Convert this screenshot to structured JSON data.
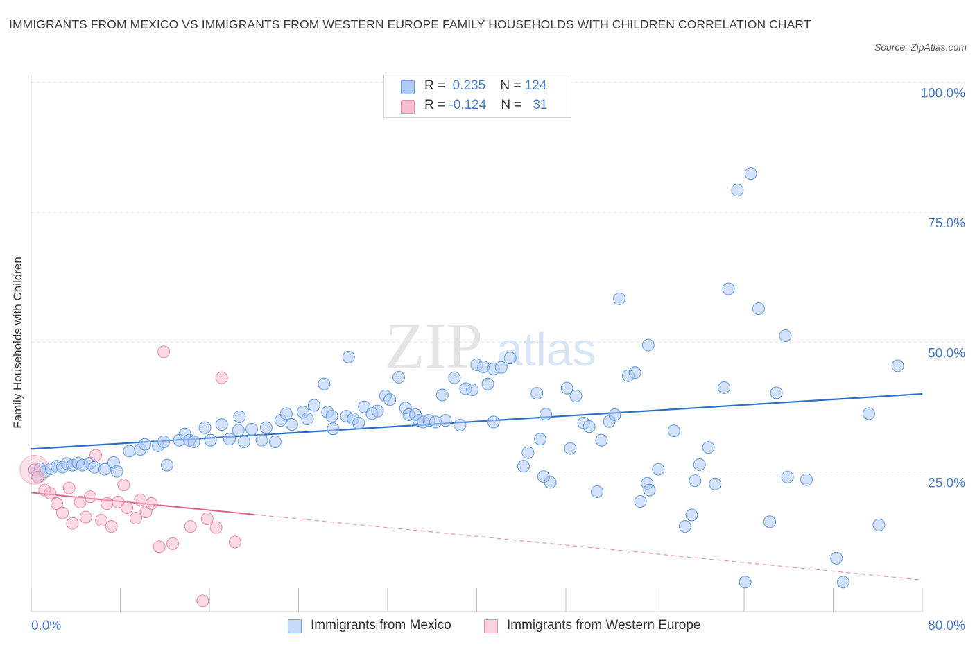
{
  "title": "IMMIGRANTS FROM MEXICO VS IMMIGRANTS FROM WESTERN EUROPE FAMILY HOUSEHOLDS WITH CHILDREN CORRELATION CHART",
  "source": "Source: ZipAtlas.com",
  "watermark": {
    "zip": "ZIP",
    "atlas": "atlas"
  },
  "legend": {
    "rows": [
      {
        "r_label": "R =",
        "r_value": "0.235",
        "n_label": "N =",
        "n_value": "124",
        "color": "#aecbf5"
      },
      {
        "r_label": "R =",
        "r_value": "-0.124",
        "n_label": "N =",
        "n_value": "31",
        "color": "#f7bcd0"
      }
    ]
  },
  "colors": {
    "mexico_fill": "#aecbf5",
    "mexico_stroke": "#6b9fe0",
    "mexico_line": "#2a6fcc",
    "weurope_fill": "#f7bcd0",
    "weurope_stroke": "#e98fae",
    "weurope_line": "#e0608c",
    "axis_text": "#4a7fcf",
    "grid": "#dddddd"
  },
  "chart_data": {
    "type": "scatter",
    "title": "IMMIGRANTS FROM MEXICO VS IMMIGRANTS FROM WESTERN EUROPE FAMILY HOUSEHOLDS WITH CHILDREN CORRELATION CHART",
    "xlabel": "",
    "ylabel": "Family Households with Children",
    "xlim": [
      0,
      80
    ],
    "ylim": [
      0,
      100
    ],
    "x_tick_labels": [
      "0.0%",
      "80.0%"
    ],
    "y_tick_labels": [
      "100.0%",
      "75.0%",
      "50.0%",
      "25.0%"
    ],
    "y_ticks": [
      100,
      75,
      50,
      25
    ],
    "grid": true,
    "legend_position": "top-center",
    "series": [
      {
        "name": "Immigrants from Mexico",
        "R": 0.235,
        "N": 124,
        "trend": {
          "x": [
            0,
            80
          ],
          "y": [
            31.3,
            41.9
          ]
        },
        "points": [
          [
            0.5,
            26.2
          ],
          [
            0.8,
            27.5
          ],
          [
            1.2,
            26.9
          ],
          [
            1.8,
            27.5
          ],
          [
            2.3,
            28.0
          ],
          [
            2.8,
            27.8
          ],
          [
            3.2,
            28.5
          ],
          [
            3.7,
            28.2
          ],
          [
            4.2,
            28.6
          ],
          [
            4.6,
            28.2
          ],
          [
            5.3,
            28.6
          ],
          [
            5.7,
            27.8
          ],
          [
            6.6,
            27.4
          ],
          [
            7.4,
            28.7
          ],
          [
            7.7,
            27.0
          ],
          [
            8.8,
            30.9
          ],
          [
            9.8,
            31.2
          ],
          [
            10.2,
            32.2
          ],
          [
            11.4,
            31.9
          ],
          [
            11.9,
            32.7
          ],
          [
            12.2,
            28.2
          ],
          [
            13.3,
            33.0
          ],
          [
            13.8,
            34.2
          ],
          [
            14.2,
            33.0
          ],
          [
            14.6,
            32.7
          ],
          [
            15.6,
            35.4
          ],
          [
            16.1,
            33.0
          ],
          [
            17.1,
            36.0
          ],
          [
            17.8,
            33.2
          ],
          [
            18.6,
            34.9
          ],
          [
            19.1,
            32.7
          ],
          [
            19.8,
            35.1
          ],
          [
            20.7,
            33.0
          ],
          [
            21.1,
            35.4
          ],
          [
            21.9,
            32.7
          ],
          [
            22.4,
            36.8
          ],
          [
            22.9,
            38.1
          ],
          [
            23.4,
            36.0
          ],
          [
            24.4,
            38.4
          ],
          [
            24.8,
            37.1
          ],
          [
            25.4,
            39.7
          ],
          [
            26.6,
            38.4
          ],
          [
            27.0,
            37.6
          ],
          [
            28.3,
            37.6
          ],
          [
            28.9,
            37.1
          ],
          [
            29.4,
            36.3
          ],
          [
            29.9,
            39.4
          ],
          [
            30.6,
            38.1
          ],
          [
            31.1,
            38.6
          ],
          [
            31.8,
            41.5
          ],
          [
            32.2,
            40.8
          ],
          [
            33.0,
            45.1
          ],
          [
            33.6,
            39.2
          ],
          [
            33.9,
            37.9
          ],
          [
            34.5,
            37.9
          ],
          [
            34.8,
            36.8
          ],
          [
            35.2,
            36.5
          ],
          [
            35.7,
            36.8
          ],
          [
            36.3,
            36.5
          ],
          [
            36.9,
            41.7
          ],
          [
            37.2,
            36.8
          ],
          [
            38.0,
            45.0
          ],
          [
            38.5,
            35.9
          ],
          [
            39.0,
            42.9
          ],
          [
            39.6,
            42.7
          ],
          [
            40.0,
            47.5
          ],
          [
            40.6,
            47.1
          ],
          [
            41.0,
            43.8
          ],
          [
            41.5,
            46.7
          ],
          [
            42.2,
            47.0
          ],
          [
            43.0,
            48.8
          ],
          [
            45.4,
            42.0
          ],
          [
            45.7,
            33.2
          ],
          [
            44.6,
            30.6
          ],
          [
            46.2,
            38.0
          ],
          [
            46.6,
            24.9
          ],
          [
            48.1,
            43.0
          ],
          [
            48.4,
            31.4
          ],
          [
            48.9,
            41.5
          ],
          [
            49.6,
            36.3
          ],
          [
            50.1,
            35.6
          ],
          [
            50.8,
            23.1
          ],
          [
            51.2,
            33.0
          ],
          [
            51.9,
            36.6
          ],
          [
            52.4,
            37.9
          ],
          [
            52.8,
            60.2
          ],
          [
            53.6,
            45.4
          ],
          [
            54.2,
            46.0
          ],
          [
            54.7,
            21.2
          ],
          [
            55.3,
            24.7
          ],
          [
            55.5,
            23.4
          ],
          [
            56.3,
            27.4
          ],
          [
            57.7,
            34.8
          ],
          [
            58.7,
            16.4
          ],
          [
            59.3,
            18.6
          ],
          [
            59.6,
            25.2
          ],
          [
            60.0,
            28.3
          ],
          [
            60.8,
            31.6
          ],
          [
            61.4,
            24.6
          ],
          [
            62.2,
            43.1
          ],
          [
            62.6,
            62.1
          ],
          [
            63.4,
            81.1
          ],
          [
            64.1,
            5.7
          ],
          [
            64.6,
            84.3
          ],
          [
            65.3,
            58.3
          ],
          [
            66.3,
            17.3
          ],
          [
            66.9,
            42.1
          ],
          [
            67.7,
            53.1
          ],
          [
            67.9,
            25.9
          ],
          [
            69.6,
            25.4
          ],
          [
            72.3,
            10.3
          ],
          [
            72.9,
            5.7
          ],
          [
            75.2,
            38.1
          ],
          [
            76.1,
            16.7
          ],
          [
            77.8,
            47.3
          ],
          [
            46.0,
            26.0
          ],
          [
            44.2,
            28.0
          ],
          [
            41.5,
            36.5
          ],
          [
            26.3,
            43.8
          ],
          [
            27.1,
            35.2
          ],
          [
            18.7,
            37.5
          ],
          [
            28.5,
            49.0
          ],
          [
            55.4,
            51.3
          ]
        ]
      },
      {
        "name": "Immigrants from Western Europe",
        "R": -0.124,
        "N": 31,
        "trend": {
          "x": [
            0,
            80
          ],
          "y": [
            22.9,
            6.1
          ]
        },
        "points": [
          [
            0.3,
            27.3
          ],
          [
            0.6,
            25.9
          ],
          [
            1.2,
            23.4
          ],
          [
            1.7,
            22.8
          ],
          [
            2.3,
            20.8
          ],
          [
            2.8,
            19.0
          ],
          [
            3.4,
            23.8
          ],
          [
            3.7,
            17.0
          ],
          [
            4.4,
            21.1
          ],
          [
            4.9,
            18.2
          ],
          [
            5.3,
            22.1
          ],
          [
            5.8,
            30.1
          ],
          [
            6.3,
            17.6
          ],
          [
            6.8,
            20.8
          ],
          [
            7.2,
            16.4
          ],
          [
            7.8,
            21.1
          ],
          [
            8.3,
            24.4
          ],
          [
            8.6,
            20.0
          ],
          [
            9.4,
            18.0
          ],
          [
            9.8,
            21.5
          ],
          [
            10.3,
            19.2
          ],
          [
            10.8,
            20.8
          ],
          [
            11.5,
            12.5
          ],
          [
            11.9,
            50.0
          ],
          [
            12.7,
            13.1
          ],
          [
            14.3,
            16.4
          ],
          [
            15.4,
            2.1
          ],
          [
            15.8,
            17.9
          ],
          [
            16.6,
            16.2
          ],
          [
            17.1,
            45.0
          ],
          [
            18.3,
            13.4
          ]
        ]
      }
    ]
  },
  "bottom_legend": [
    "Immigrants from Mexico",
    "Immigrants from Western Europe"
  ]
}
